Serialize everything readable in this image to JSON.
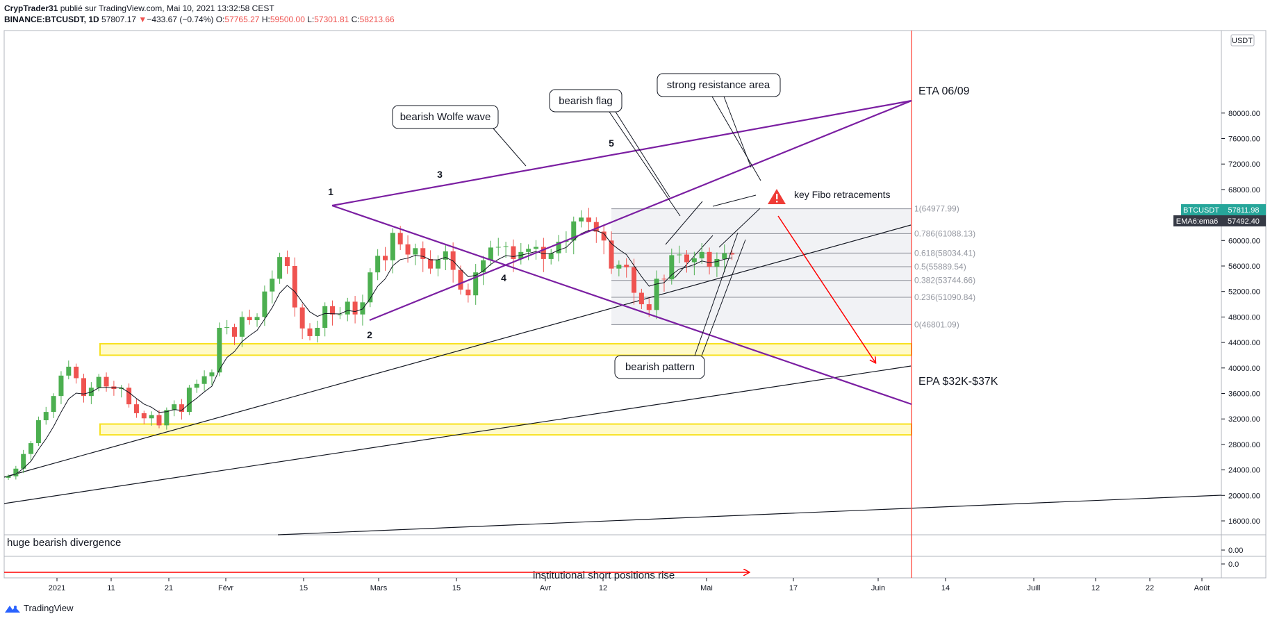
{
  "header": {
    "author": "CrypTrader31",
    "published": "publié sur TradingView.com, Mai 10, 2021 13:32:58 CEST",
    "symbol": "BINANCE:BTCUSDT, 1D",
    "last": "57807.17",
    "change": "−433.67 (−0.74%)",
    "o_label": "O:",
    "o_value": "57765.27",
    "h_label": "H:",
    "h_value": "59500.00",
    "l_label": "L:",
    "l_value": "57301.81",
    "c_label": "C:",
    "c_value": "58213.66"
  },
  "footer": {
    "brand": "TradingView"
  },
  "colors": {
    "up": "#26a69a",
    "candle_up": "#4caf50",
    "down": "#ef5350",
    "wolfe": "#7b1fa2",
    "zone": "#fff59d",
    "fib_box": "#eceef2"
  },
  "chart_data": {
    "type": "candlestick",
    "title": "",
    "currency_badge": "USDT",
    "price_badge": {
      "symbol": "BTCUSDT",
      "value": "57811.98"
    },
    "ema_badge": {
      "label": "EMA6:ema6",
      "value": "57492.40"
    },
    "y_axis_labels": [
      "80000.00",
      "76000.00",
      "72000.00",
      "68000.00",
      "64000.00",
      "60000.00",
      "56000.00",
      "52000.00",
      "48000.00",
      "44000.00",
      "40000.00",
      "36000.00",
      "32000.00",
      "28000.00",
      "24000.00",
      "20000.00",
      "16000.00"
    ],
    "ylim": [
      14500,
      81500
    ],
    "x_axis_labels": [
      "2021",
      "11",
      "21",
      "Févr",
      "15",
      "Mars",
      "15",
      "Avr",
      "12",
      "Mai",
      "17",
      "Juin",
      "14",
      "Juill",
      "12",
      "22",
      "Août"
    ],
    "closes": [
      23000,
      24200,
      26500,
      28200,
      31800,
      33100,
      35600,
      38800,
      40200,
      38400,
      35600,
      36900,
      38600,
      37100,
      36700,
      36900,
      34300,
      32900,
      32100,
      32600,
      31000,
      33400,
      34300,
      33100,
      36900,
      37500,
      38700,
      39300,
      46300,
      46400,
      44900,
      48000,
      47500,
      48000,
      52000,
      54000,
      57400,
      56000,
      49500,
      46200,
      45000,
      46300,
      49700,
      48400,
      48400,
      50400,
      48400,
      50300,
      55000,
      57600,
      56900,
      61200,
      59400,
      57800,
      58800,
      57100,
      55600,
      57000,
      58300,
      55400,
      52300,
      51400,
      55000,
      56900,
      58900,
      59000,
      59100,
      57100,
      58200,
      58700,
      59000,
      57100,
      58000,
      59800,
      60000,
      63000,
      63600,
      62900,
      61400,
      60000,
      55600,
      56200,
      55800,
      51800,
      50000,
      49100,
      54000,
      53900,
      57700,
      57800,
      56600,
      57200,
      58200,
      55900,
      57100,
      58000,
      57807
    ],
    "fibonacci": {
      "box_range": [
        46801.09,
        64977.99
      ],
      "levels": [
        {
          "label": "1(64977.99)",
          "value": 64977.99
        },
        {
          "label": "0.786(61088.13)",
          "value": 61088.13
        },
        {
          "label": "0.618(58034.41)",
          "value": 58034.41
        },
        {
          "label": "0.5(55889.54)",
          "value": 55889.54
        },
        {
          "label": "0.382(53744.66)",
          "value": 53744.66
        },
        {
          "label": "0.236(51090.84)",
          "value": 51090.84
        },
        {
          "label": "0(46801.09)",
          "value": 46801.09
        }
      ]
    },
    "zones": [
      [
        42000,
        43800
      ],
      [
        29500,
        31200
      ]
    ],
    "wave_points": [
      "1",
      "2",
      "3",
      "4",
      "5"
    ],
    "annotations": {
      "wolfe": "bearish Wolfe wave",
      "flag": "bearish flag",
      "resistance": "strong resistance area",
      "pattern": "bearish pattern",
      "fibo": "key Fibo retracements",
      "eta": "ETA 06/09",
      "epa": "EPA  $32K-$37K",
      "divergence": "huge bearish divergence",
      "institutional": "institutional short positions rise"
    },
    "indicator_labels": [
      "0.00",
      "0.0"
    ]
  }
}
